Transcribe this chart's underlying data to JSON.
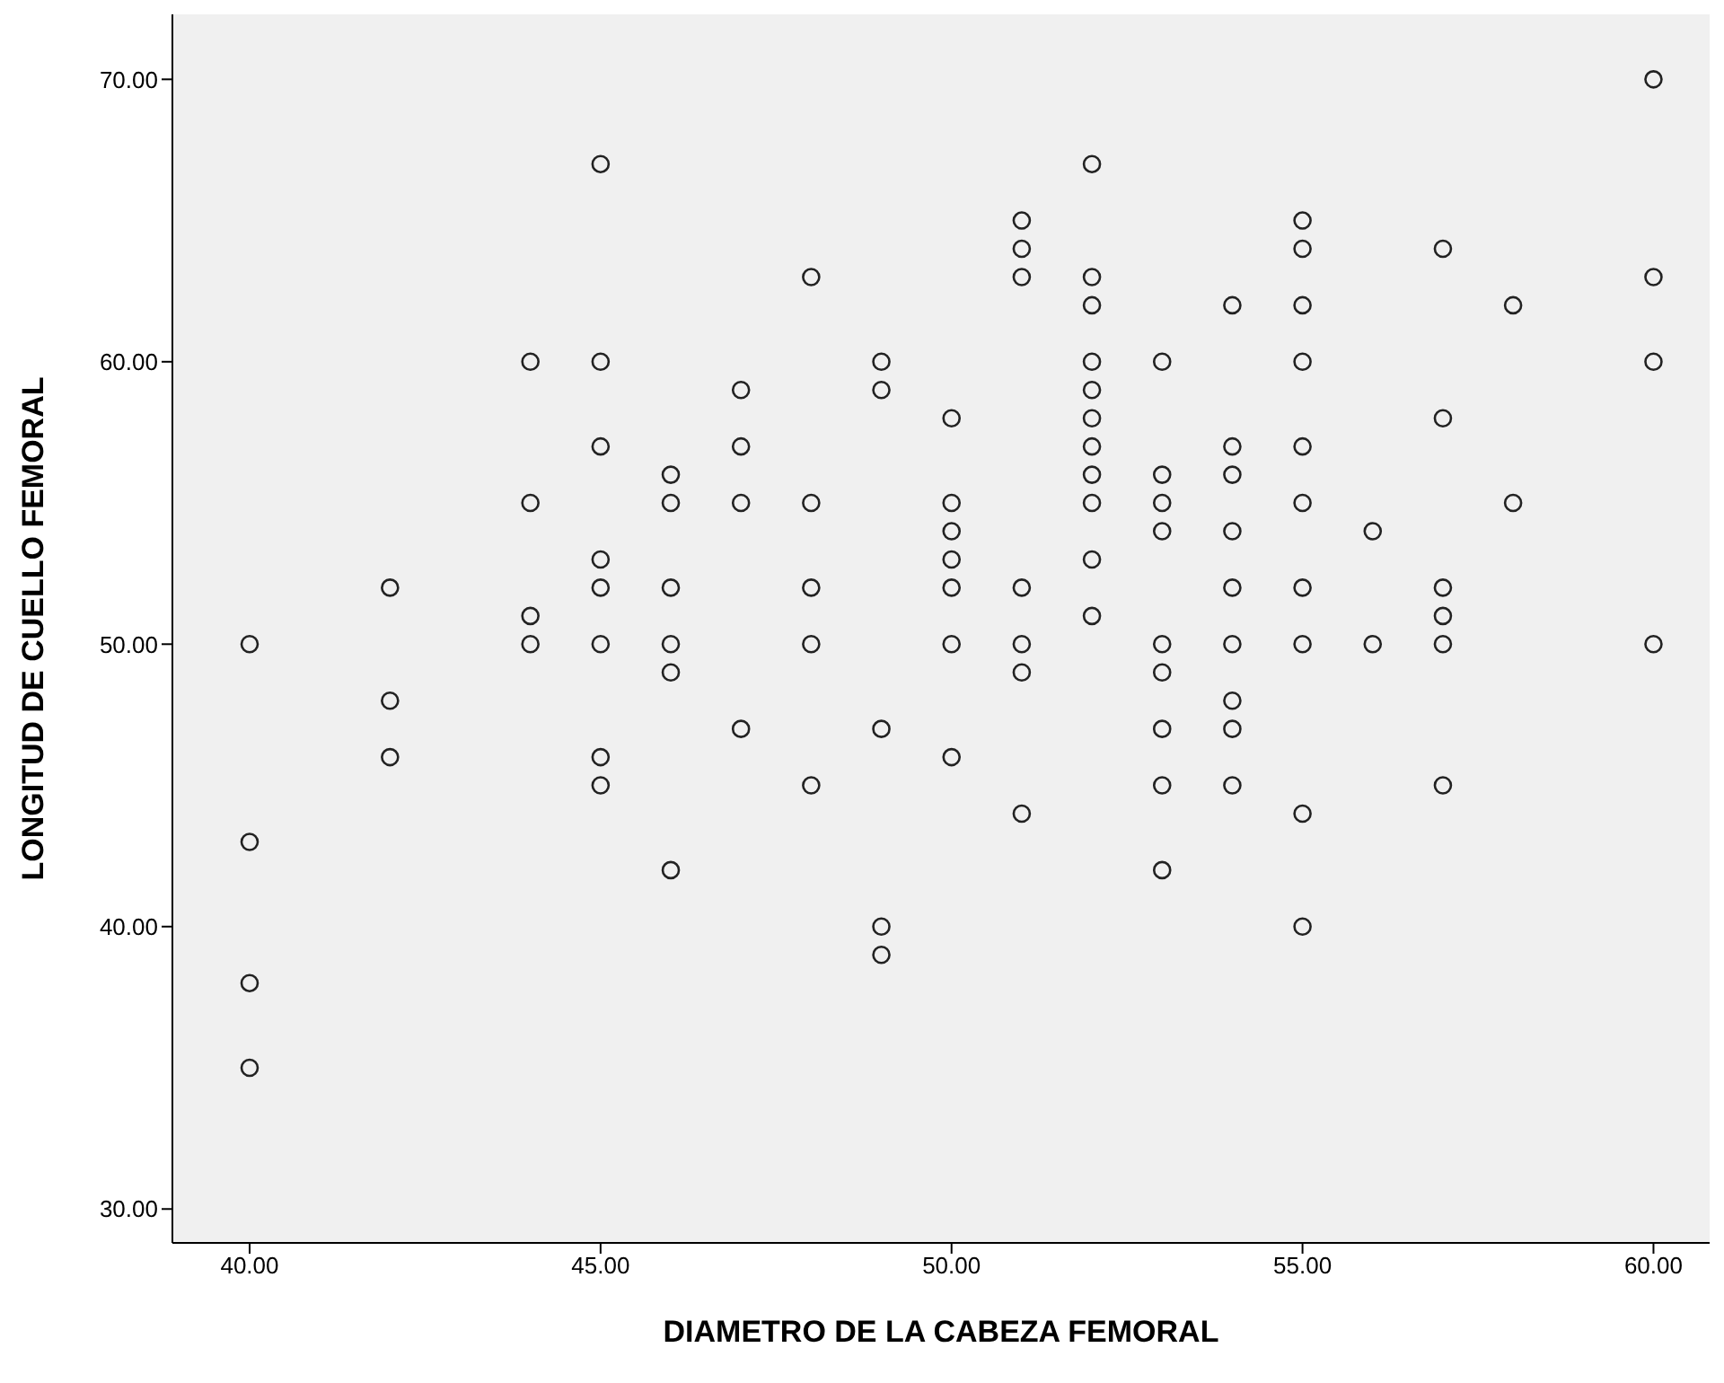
{
  "chart_data": {
    "type": "scatter",
    "xlabel": "DIAMETRO DE LA CABEZA FEMORAL",
    "ylabel": "LONGITUD DE CUELLO FEMORAL",
    "marker": "circle",
    "grid": false,
    "legend": false,
    "xlim": [
      38.9,
      60.8
    ],
    "ylim": [
      28.8,
      72.3
    ],
    "xticks": [
      {
        "value": 40,
        "label": "40.00"
      },
      {
        "value": 45,
        "label": "45.00"
      },
      {
        "value": 50,
        "label": "50.00"
      },
      {
        "value": 55,
        "label": "55.00"
      },
      {
        "value": 60,
        "label": "60.00"
      }
    ],
    "yticks": [
      {
        "value": 30,
        "label": "30.00"
      },
      {
        "value": 40,
        "label": "40.00"
      },
      {
        "value": 50,
        "label": "50.00"
      },
      {
        "value": 60,
        "label": "60.00"
      },
      {
        "value": 70,
        "label": "70.00"
      }
    ],
    "series": [
      {
        "color": "#222222",
        "x": [
          40,
          40,
          40,
          40,
          42,
          42,
          42,
          44,
          44,
          44,
          44,
          45,
          45,
          45,
          45,
          45,
          45,
          45,
          45,
          46,
          46,
          46,
          46,
          46,
          46,
          47,
          47,
          47,
          47,
          48,
          48,
          48,
          48,
          48,
          49,
          49,
          49,
          49,
          49,
          50,
          50,
          50,
          50,
          50,
          50,
          50,
          51,
          51,
          51,
          51,
          51,
          51,
          51,
          52,
          52,
          52,
          52,
          52,
          52,
          52,
          52,
          52,
          52,
          52,
          53,
          53,
          53,
          53,
          53,
          53,
          53,
          53,
          53,
          54,
          54,
          54,
          54,
          54,
          54,
          54,
          54,
          54,
          55,
          55,
          55,
          55,
          55,
          55,
          55,
          55,
          55,
          55,
          56,
          56,
          57,
          57,
          57,
          57,
          57,
          57,
          58,
          58,
          60,
          60,
          60,
          60
        ],
        "values": [
          50,
          43,
          38,
          35,
          52,
          48,
          46,
          60,
          55,
          51,
          50,
          67,
          60,
          57,
          53,
          52,
          50,
          46,
          45,
          56,
          55,
          52,
          50,
          49,
          42,
          59,
          57,
          55,
          47,
          63,
          55,
          52,
          50,
          45,
          60,
          59,
          47,
          40,
          39,
          58,
          55,
          54,
          53,
          52,
          50,
          46,
          65,
          64,
          63,
          52,
          50,
          49,
          44,
          67,
          63,
          62,
          60,
          59,
          58,
          57,
          56,
          55,
          53,
          51,
          60,
          56,
          55,
          54,
          50,
          49,
          47,
          45,
          42,
          62,
          57,
          56,
          54,
          52,
          50,
          48,
          47,
          45,
          65,
          64,
          62,
          60,
          57,
          55,
          52,
          50,
          44,
          40,
          54,
          50,
          64,
          58,
          52,
          51,
          50,
          45,
          62,
          55,
          70,
          63,
          60,
          50
        ]
      }
    ]
  }
}
